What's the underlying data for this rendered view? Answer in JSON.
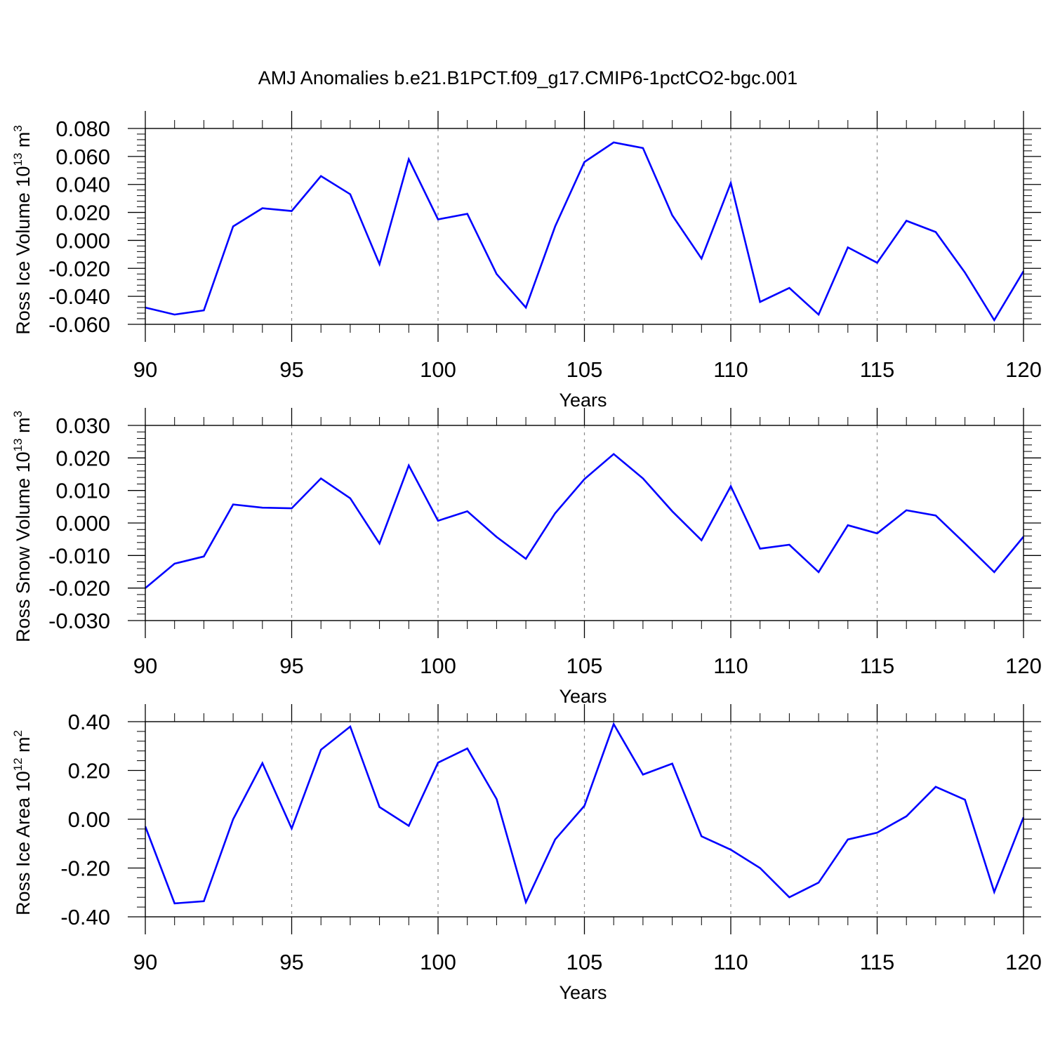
{
  "figure": {
    "title": "AMJ Anomalies b.e21.B1PCT.f09_g17.CMIP6-1pctCO2-bgc.001"
  },
  "chart_data": [
    {
      "type": "line",
      "ylabel": {
        "text": "Ross Ice Volume 10",
        "exp": "13",
        "unit": " m",
        "unit_exp": "3"
      },
      "xlabel": "Years",
      "xlim": [
        90,
        120
      ],
      "ylim": [
        -0.06,
        0.08
      ],
      "xticks": [
        90,
        95,
        100,
        105,
        110,
        115,
        120
      ],
      "xtick_labels": [
        "90",
        "95",
        "100",
        "105",
        "110",
        "115",
        "120"
      ],
      "yticks": [
        -0.06,
        -0.04,
        -0.02,
        0.0,
        0.02,
        0.04,
        0.06,
        0.08
      ],
      "ytick_labels": [
        "-0.060",
        "-0.040",
        "-0.020",
        "0.000",
        "0.020",
        "0.040",
        "0.060",
        "0.080"
      ],
      "line_color": "#0000ff",
      "grid": "vertical dashed at major x ticks",
      "x": [
        90,
        91,
        92,
        93,
        94,
        95,
        96,
        97,
        98,
        99,
        100,
        101,
        102,
        103,
        104,
        105,
        106,
        107,
        108,
        109,
        110,
        111,
        112,
        113,
        114,
        115,
        116,
        117,
        118,
        119,
        120
      ],
      "y": [
        -0.048,
        -0.053,
        -0.05,
        0.01,
        0.023,
        0.021,
        0.046,
        0.033,
        -0.017,
        0.058,
        0.015,
        0.019,
        -0.024,
        -0.048,
        0.01,
        0.056,
        0.07,
        0.066,
        0.018,
        -0.013,
        0.041,
        -0.044,
        -0.034,
        -0.053,
        -0.005,
        -0.016,
        0.014,
        0.006,
        -0.023,
        -0.057,
        -0.022
      ]
    },
    {
      "type": "line",
      "ylabel": {
        "text": "Ross Snow Volume 10",
        "exp": "13",
        "unit": " m",
        "unit_exp": "3"
      },
      "xlabel": "Years",
      "xlim": [
        90,
        120
      ],
      "ylim": [
        -0.03,
        0.03
      ],
      "xticks": [
        90,
        95,
        100,
        105,
        110,
        115,
        120
      ],
      "xtick_labels": [
        "90",
        "95",
        "100",
        "105",
        "110",
        "115",
        "120"
      ],
      "yticks": [
        -0.03,
        -0.02,
        -0.01,
        0.0,
        0.01,
        0.02,
        0.03
      ],
      "ytick_labels": [
        "-0.030",
        "-0.020",
        "-0.010",
        "0.000",
        "0.010",
        "0.020",
        "0.030"
      ],
      "line_color": "#0000ff",
      "grid": "vertical dashed at major x ticks",
      "x": [
        90,
        91,
        92,
        93,
        94,
        95,
        96,
        97,
        98,
        99,
        100,
        101,
        102,
        103,
        104,
        105,
        106,
        107,
        108,
        109,
        110,
        111,
        112,
        113,
        114,
        115,
        116,
        117,
        118,
        119,
        120
      ],
      "y": [
        -0.02,
        -0.0125,
        -0.0103,
        0.0057,
        0.0047,
        0.0045,
        0.0137,
        0.0076,
        -0.0063,
        0.0177,
        0.0007,
        0.0036,
        -0.0043,
        -0.011,
        0.003,
        0.0135,
        0.0212,
        0.0137,
        0.0036,
        -0.0053,
        0.0113,
        -0.0079,
        -0.0067,
        -0.0151,
        -0.0007,
        -0.0032,
        0.0039,
        0.0023,
        -0.0063,
        -0.0151,
        -0.0042
      ]
    },
    {
      "type": "line",
      "ylabel": {
        "text": "Ross Ice Area 10",
        "exp": "12",
        "unit": " m",
        "unit_exp": "2"
      },
      "xlabel": "Years",
      "xlim": [
        90,
        120
      ],
      "ylim": [
        -0.4,
        0.4
      ],
      "xticks": [
        90,
        95,
        100,
        105,
        110,
        115,
        120
      ],
      "xtick_labels": [
        "90",
        "95",
        "100",
        "105",
        "110",
        "115",
        "120"
      ],
      "yticks": [
        -0.4,
        -0.2,
        0.0,
        0.2,
        0.4
      ],
      "ytick_labels": [
        "-0.40",
        "-0.20",
        "0.00",
        "0.20",
        "0.40"
      ],
      "line_color": "#0000ff",
      "grid": "vertical dashed at major x ticks",
      "x": [
        90,
        91,
        92,
        93,
        94,
        95,
        96,
        97,
        98,
        99,
        100,
        101,
        102,
        103,
        104,
        105,
        106,
        107,
        108,
        109,
        110,
        111,
        112,
        113,
        114,
        115,
        116,
        117,
        118,
        119,
        120
      ],
      "y": [
        -0.03,
        -0.345,
        -0.336,
        0.0,
        0.23,
        -0.038,
        0.285,
        0.38,
        0.05,
        -0.027,
        0.232,
        0.29,
        0.083,
        -0.34,
        -0.083,
        0.055,
        0.39,
        0.183,
        0.228,
        -0.07,
        -0.125,
        -0.2,
        -0.32,
        -0.26,
        -0.083,
        -0.055,
        0.012,
        0.133,
        0.08,
        -0.298,
        0.008
      ]
    }
  ]
}
